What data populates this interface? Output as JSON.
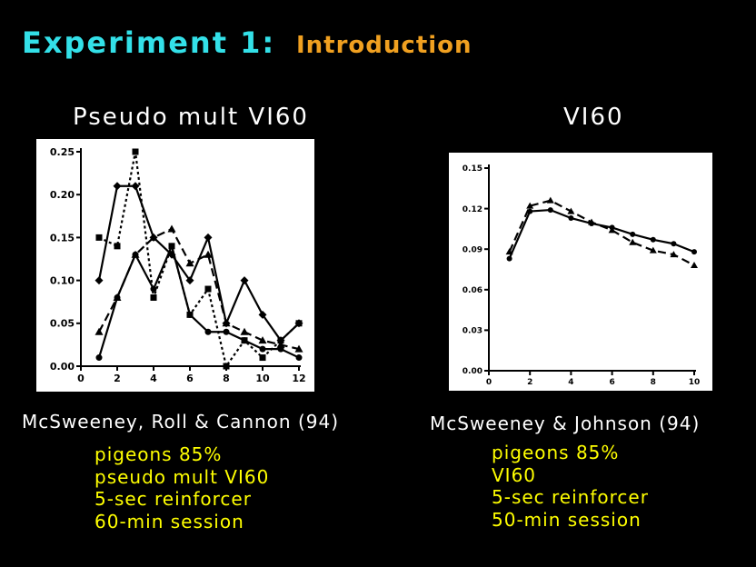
{
  "slide": {
    "title": "Experiment 1:",
    "subtitle": "Introduction"
  },
  "colors": {
    "background": "#000000",
    "title": "#33e0e8",
    "subtitle": "#f0a020",
    "notes": "#ffff00",
    "panel": "#ffffff",
    "ink": "#000000"
  },
  "left": {
    "chart_title": "Pseudo mult VI60",
    "citation": "McSweeney, Roll & Cannon (94)",
    "notes": [
      "pigeons 85%",
      "pseudo mult VI60",
      "5-sec reinforcer",
      "60-min session"
    ]
  },
  "right": {
    "chart_title": "VI60",
    "citation": "McSweeney & Johnson (94)",
    "notes": [
      "pigeons 85%",
      "VI60",
      "5-sec reinforcer",
      "50-min session"
    ]
  },
  "chart_data": [
    {
      "type": "line",
      "title": "Pseudo mult VI60",
      "xlabel": "",
      "ylabel": "",
      "xlim": [
        0,
        12
      ],
      "ylim": [
        0,
        0.25
      ],
      "x_ticks": [
        "0",
        "2",
        "4",
        "6",
        "8",
        "10",
        "12"
      ],
      "y_ticks": [
        "0.00",
        "0.05",
        "0.10",
        "0.15",
        "0.20",
        "0.25"
      ],
      "grid": false,
      "series": [
        {
          "style": "solid",
          "marker": "circle",
          "x": [
            1,
            2,
            3,
            4,
            5,
            6,
            7,
            8,
            9,
            10,
            11,
            12
          ],
          "y": [
            0.01,
            0.08,
            0.13,
            0.09,
            0.14,
            0.06,
            0.04,
            0.04,
            0.03,
            0.02,
            0.02,
            0.01
          ]
        },
        {
          "style": "solid",
          "marker": "diamond",
          "x": [
            1,
            2,
            3,
            4,
            5,
            6,
            7,
            8,
            9,
            10,
            11,
            12
          ],
          "y": [
            0.1,
            0.21,
            0.21,
            0.15,
            0.13,
            0.1,
            0.15,
            0.05,
            0.1,
            0.06,
            0.03,
            0.05
          ]
        },
        {
          "style": "dotted",
          "marker": "square",
          "x": [
            1,
            2,
            3,
            4,
            5,
            6,
            7,
            8,
            9,
            10,
            11,
            12
          ],
          "y": [
            0.15,
            0.14,
            0.25,
            0.08,
            0.14,
            0.06,
            0.09,
            0.0,
            0.03,
            0.01,
            0.03,
            0.05
          ]
        },
        {
          "style": "dashed",
          "marker": "triangle",
          "x": [
            1,
            2,
            3,
            4,
            5,
            6,
            7,
            8,
            9,
            10,
            11,
            12
          ],
          "y": [
            0.04,
            0.08,
            0.13,
            0.15,
            0.16,
            0.12,
            0.13,
            0.05,
            0.04,
            0.03,
            0.025,
            0.02
          ]
        }
      ]
    },
    {
      "type": "line",
      "title": "VI60",
      "xlabel": "",
      "ylabel": "",
      "xlim": [
        0,
        10
      ],
      "ylim": [
        0,
        0.15
      ],
      "x_ticks": [
        "0",
        "2",
        "4",
        "6",
        "8",
        "10"
      ],
      "y_ticks": [
        "0.00",
        "0.03",
        "0.06",
        "0.09",
        "0.12",
        "0.15"
      ],
      "grid": false,
      "series": [
        {
          "style": "solid",
          "marker": "circle",
          "x": [
            1,
            2,
            3,
            4,
            5,
            6,
            7,
            8,
            9,
            10
          ],
          "y": [
            0.083,
            0.118,
            0.119,
            0.113,
            0.109,
            0.106,
            0.101,
            0.097,
            0.094,
            0.088
          ]
        },
        {
          "style": "dashed",
          "marker": "triangle",
          "x": [
            1,
            2,
            3,
            4,
            5,
            6,
            7,
            8,
            9,
            10
          ],
          "y": [
            0.088,
            0.122,
            0.126,
            0.118,
            0.11,
            0.104,
            0.095,
            0.089,
            0.086,
            0.078
          ]
        }
      ]
    }
  ]
}
